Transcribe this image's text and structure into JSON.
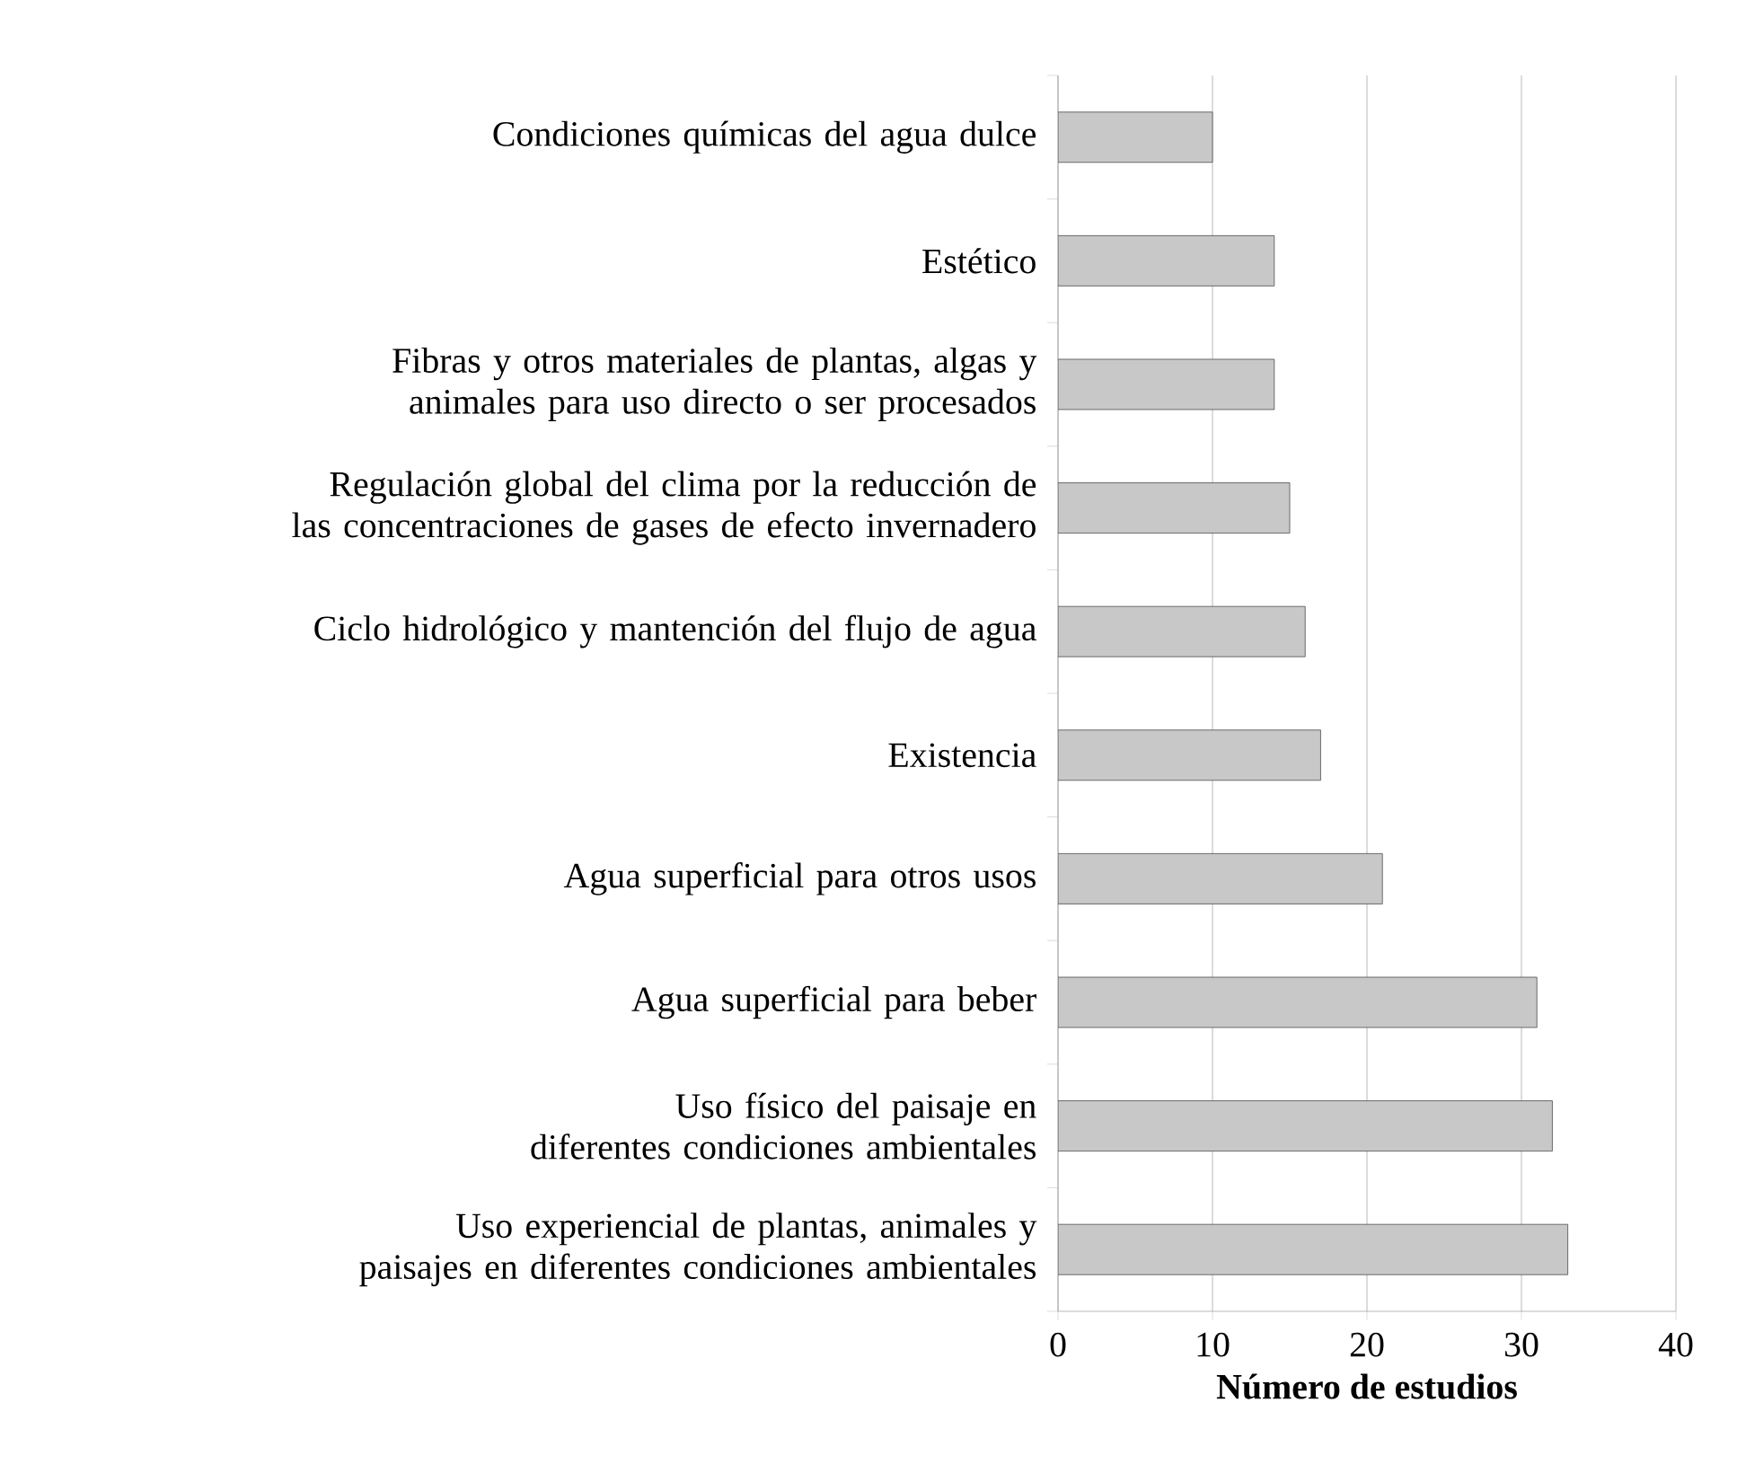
{
  "chart_data": {
    "type": "bar",
    "orientation": "horizontal",
    "categories": [
      "Condiciones químicas del agua dulce",
      "Estético",
      "Fibras y otros materiales de plantas, algas y animales para uso directo o ser procesados",
      "Regulación global del clima por la reducción de las concentraciones de gases de efecto invernadero",
      "Ciclo hidrológico y mantención del flujo de agua",
      "Existencia",
      "Agua superficial para otros usos",
      "Agua superficial para beber",
      "Uso físico del paisaje en diferentes condiciones ambientales",
      "Uso experiencial de plantas, animales y paisajes en diferentes condiciones ambientales"
    ],
    "values": [
      10,
      14,
      14,
      15,
      16,
      17,
      21,
      31,
      32,
      33
    ],
    "color": "#c8c8c8",
    "xlabel": "Número de estudios",
    "xlim": [
      0,
      40
    ],
    "xticks": [
      0,
      10,
      20,
      30,
      40
    ],
    "grid": "x"
  }
}
